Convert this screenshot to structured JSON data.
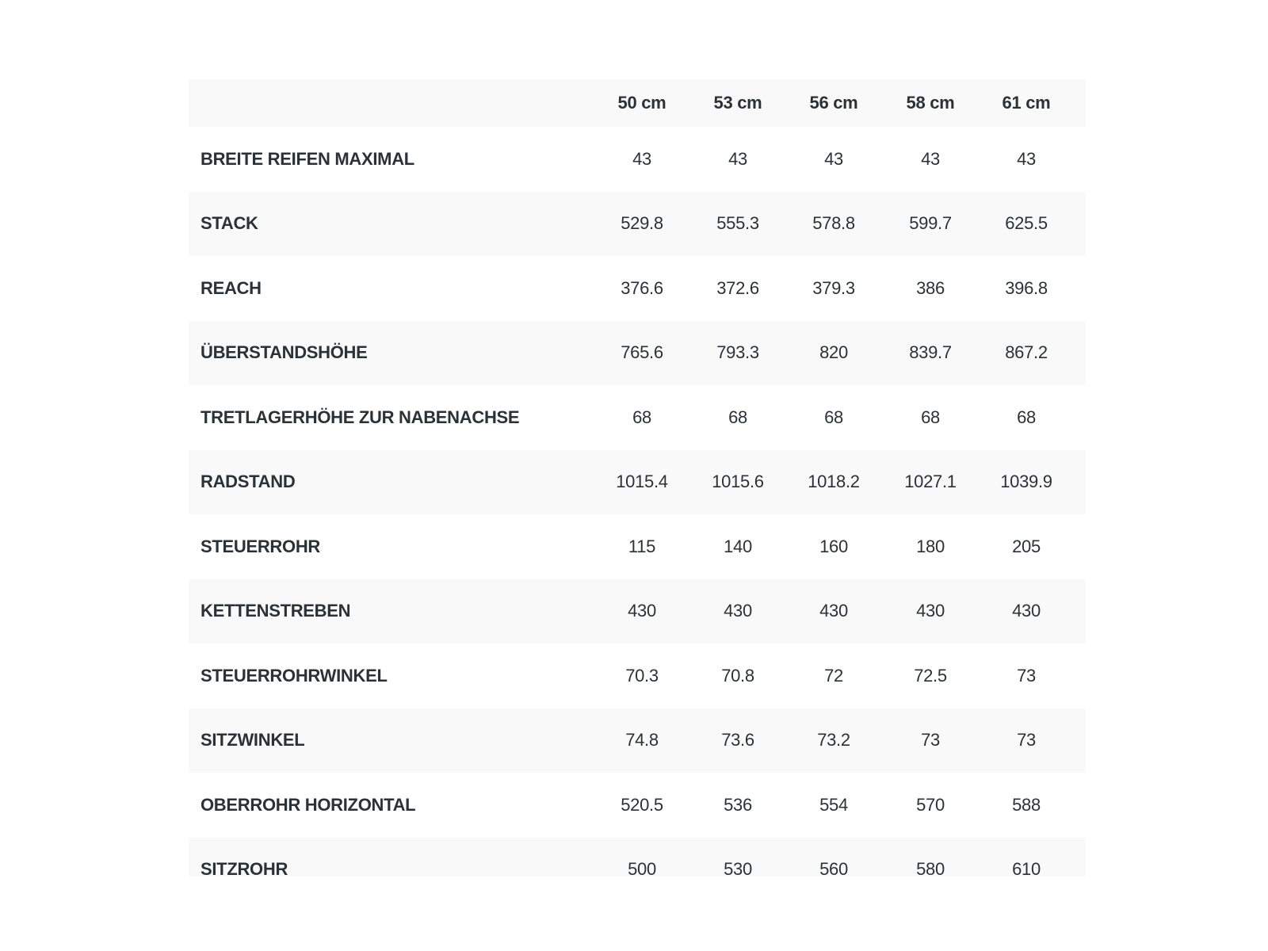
{
  "table": {
    "header": [
      "50 cm",
      "53 cm",
      "56 cm",
      "58 cm",
      "61 cm"
    ],
    "rows": [
      [
        "BREITE REIFEN MAXIMAL",
        "43",
        "43",
        "43",
        "43",
        "43"
      ],
      [
        "STACK",
        "529.8",
        "555.3",
        "578.8",
        "599.7",
        "625.5"
      ],
      [
        "REACH",
        "376.6",
        "372.6",
        "379.3",
        "386",
        "396.8"
      ],
      [
        "ÜBERSTANDSHÖHE",
        "765.6",
        "793.3",
        "820",
        "839.7",
        "867.2"
      ],
      [
        "TRETLAGERHÖHE ZUR NABENACHSE",
        "68",
        "68",
        "68",
        "68",
        "68"
      ],
      [
        "RADSTAND",
        "1015.4",
        "1015.6",
        "1018.2",
        "1027.1",
        "1039.9"
      ],
      [
        "STEUERROHR",
        "115",
        "140",
        "160",
        "180",
        "205"
      ],
      [
        "KETTENSTREBEN",
        "430",
        "430",
        "430",
        "430",
        "430"
      ],
      [
        "STEUERROHRWINKEL",
        "70.3",
        "70.8",
        "72",
        "72.5",
        "73"
      ],
      [
        "SITZWINKEL",
        "74.8",
        "73.6",
        "73.2",
        "73",
        "73"
      ],
      [
        "OBERROHR HORIZONTAL",
        "520.5",
        "536",
        "554",
        "570",
        "588"
      ],
      [
        "SITZROHR",
        "500",
        "530",
        "560",
        "580",
        "610"
      ]
    ]
  }
}
